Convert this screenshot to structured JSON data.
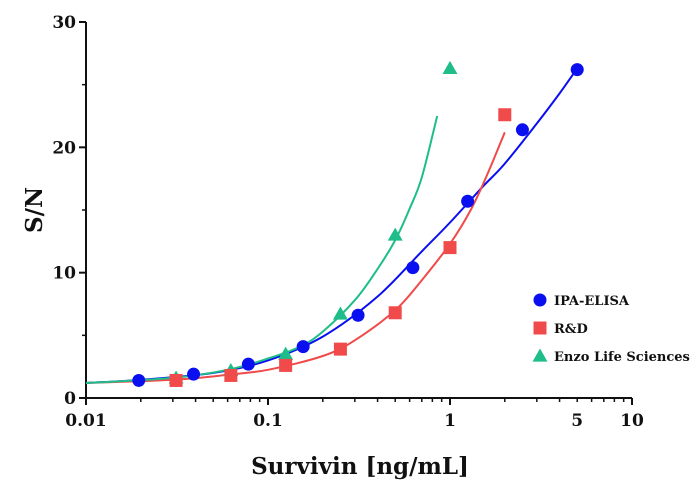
{
  "chart_data": {
    "type": "scatter",
    "title": "",
    "xlabel": "Survivin [ng/mL]",
    "ylabel": "S/N",
    "x_scale": "log",
    "xlim": [
      0.01,
      10
    ],
    "ylim": [
      0,
      30
    ],
    "x_ticks": [
      0.01,
      0.1,
      1,
      5,
      10
    ],
    "x_tick_labels": [
      "0.01",
      "0.1",
      "1",
      "5",
      "10"
    ],
    "y_ticks": [
      0,
      10,
      20,
      30
    ],
    "y_tick_labels": [
      "0",
      "10",
      "20",
      "30"
    ],
    "grid": false,
    "legend_position": "right",
    "series": [
      {
        "name": "IPA-ELISA",
        "color": "#0a0ff0",
        "marker": "circle",
        "x": [
          0.0195,
          0.039,
          0.078,
          0.156,
          0.3125,
          0.625,
          1.25,
          2.5,
          5
        ],
        "y": [
          1.4,
          1.9,
          2.7,
          4.1,
          6.6,
          10.4,
          15.7,
          21.4,
          26.2
        ],
        "fit_x": [
          0.01,
          0.02,
          0.05,
          0.1,
          0.2,
          0.4,
          0.7,
          1.0,
          1.5,
          2.0,
          3.0,
          4.0,
          5.0
        ],
        "fit_y": [
          1.2,
          1.45,
          2.0,
          3.0,
          4.9,
          8.1,
          11.7,
          14.0,
          16.8,
          18.7,
          21.9,
          24.3,
          26.3
        ]
      },
      {
        "name": "R&D",
        "color": "#f04a4a",
        "marker": "square",
        "x": [
          0.03125,
          0.0625,
          0.125,
          0.25,
          0.5,
          1,
          2
        ],
        "y": [
          1.4,
          1.8,
          2.6,
          3.9,
          6.8,
          12.0,
          22.6
        ],
        "fit_x": [
          0.01,
          0.03,
          0.06,
          0.1,
          0.2,
          0.3,
          0.5,
          0.7,
          1.0,
          1.3,
          1.6,
          2.0
        ],
        "fit_y": [
          1.2,
          1.45,
          1.85,
          2.25,
          3.35,
          4.6,
          7.0,
          9.4,
          12.3,
          15.0,
          17.8,
          21.2
        ]
      },
      {
        "name": "Enzo Life Sciences",
        "color": "#1ebd8a",
        "marker": "triangle",
        "x": [
          0.03125,
          0.0625,
          0.125,
          0.25,
          0.5,
          1
        ],
        "y": [
          1.6,
          2.2,
          3.5,
          6.7,
          13.0,
          26.3
        ],
        "fit_x": [
          0.01,
          0.03,
          0.06,
          0.1,
          0.15,
          0.2,
          0.3,
          0.4,
          0.5,
          0.6,
          0.7,
          0.85
        ],
        "fit_y": [
          1.2,
          1.6,
          2.25,
          3.15,
          4.1,
          5.3,
          7.8,
          10.3,
          12.6,
          15.1,
          17.6,
          22.5
        ]
      }
    ]
  }
}
